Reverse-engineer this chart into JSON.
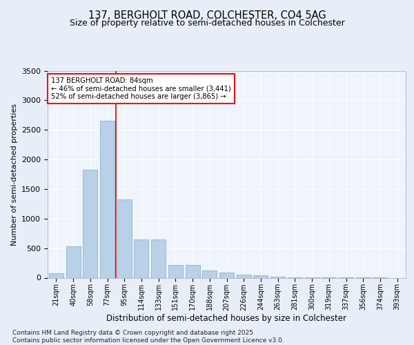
{
  "title": "137, BERGHOLT ROAD, COLCHESTER, CO4 5AG",
  "subtitle": "Size of property relative to semi-detached houses in Colchester",
  "xlabel": "Distribution of semi-detached houses by size in Colchester",
  "ylabel": "Number of semi-detached properties",
  "categories": [
    "21sqm",
    "40sqm",
    "58sqm",
    "77sqm",
    "95sqm",
    "114sqm",
    "133sqm",
    "151sqm",
    "170sqm",
    "188sqm",
    "207sqm",
    "226sqm",
    "244sqm",
    "263sqm",
    "281sqm",
    "300sqm",
    "319sqm",
    "337sqm",
    "356sqm",
    "374sqm",
    "393sqm"
  ],
  "values": [
    80,
    530,
    1830,
    2650,
    1320,
    650,
    650,
    220,
    220,
    120,
    90,
    50,
    40,
    15,
    8,
    5,
    3,
    2,
    1,
    1,
    0
  ],
  "bar_color": "#b8d0e8",
  "bar_edge_color": "#7aaac8",
  "vline_color": "#cc0000",
  "vline_x_index": 3,
  "annotation_title": "137 BERGHOLT ROAD: 84sqm",
  "annotation_line2": "← 46% of semi-detached houses are smaller (3,441)",
  "annotation_line3": "52% of semi-detached houses are larger (3,865) →",
  "ylim": [
    0,
    3500
  ],
  "yticks": [
    0,
    500,
    1000,
    1500,
    2000,
    2500,
    3000,
    3500
  ],
  "footer_line1": "Contains HM Land Registry data © Crown copyright and database right 2025.",
  "footer_line2": "Contains public sector information licensed under the Open Government Licence v3.0.",
  "bg_color": "#e8eef8",
  "plot_bg_color": "#f0f4fc",
  "grid_color": "#ffffff",
  "spine_color": "#b0b8d0"
}
